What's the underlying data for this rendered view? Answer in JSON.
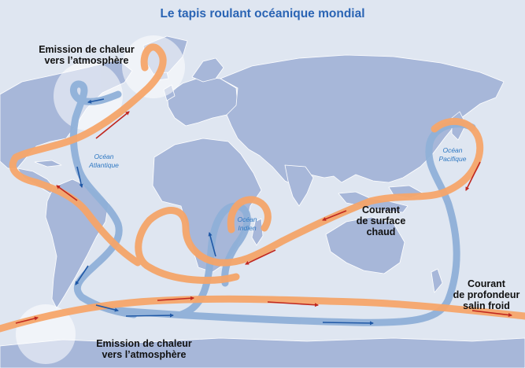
{
  "title": "Le tapis roulant océanique mondial",
  "labels": {
    "heat_north": [
      "Emission de chaleur",
      "vers l’atmosphère"
    ],
    "heat_south": [
      "Emission de chaleur",
      "vers l’atmosphère"
    ],
    "warm_current": [
      "Courant",
      "de surface",
      "chaud"
    ],
    "cold_current": [
      "Courant",
      "de profondeur",
      "salin froid"
    ]
  },
  "oceans": {
    "atlantic": [
      "Océan",
      "Atlantique"
    ],
    "indian": [
      "Océan",
      "Indien"
    ],
    "pacific": [
      "Océan",
      "Pacifique"
    ]
  },
  "colors": {
    "sea": "#dfe6f1",
    "land": "#a7b7d9",
    "borders": "#ffffff",
    "warm_current": "#f5a56a",
    "cold_current": "#8fb0d8",
    "warm_arrow": "#c0271f",
    "cold_arrow": "#1f58a6",
    "title": "#2a64b4"
  }
}
